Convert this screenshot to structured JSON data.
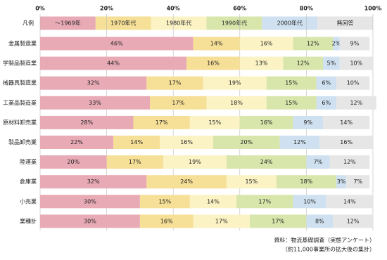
{
  "chart_data": {
    "type": "stacked-bar-horizontal",
    "legend_title": "凡例",
    "categories": [
      "金属製造業",
      "学製品製造業",
      "械器具製造業",
      "工業品製造業",
      "原材料卸売業",
      "製品卸売業",
      "陸運業",
      "倉庫業",
      "小売業",
      "業種計"
    ],
    "series": [
      {
        "name": "〜1969年",
        "color": "#e8aab5",
        "values": [
          46,
          44,
          32,
          33,
          28,
          22,
          20,
          32,
          30,
          30
        ],
        "value_labels": [
          "46%",
          "44%",
          "32%",
          "33%",
          "28%",
          "22%",
          "20%",
          "32%",
          "30%",
          "30%"
        ]
      },
      {
        "name": "1970年代",
        "color": "#f6df96",
        "values": [
          14,
          16,
          17,
          17,
          17,
          14,
          17,
          24,
          15,
          16
        ],
        "value_labels": [
          "14%",
          "16%",
          "17%",
          "17%",
          "17%",
          "14%",
          "17%",
          "24%",
          "15%",
          "16%"
        ]
      },
      {
        "name": "1980年代",
        "color": "#fbf3c4",
        "values": [
          16,
          13,
          19,
          18,
          15,
          16,
          19,
          15,
          14,
          17
        ],
        "value_labels": [
          "16%",
          "13%",
          "19%",
          "18%",
          "15%",
          "16%",
          "19%",
          "15%",
          "14%",
          "17%"
        ]
      },
      {
        "name": "1990年代",
        "color": "#d9e6ab",
        "values": [
          12,
          12,
          15,
          15,
          16,
          20,
          24,
          18,
          17,
          17
        ],
        "value_labels": [
          "12%",
          "12%",
          "15%",
          "15%",
          "16%",
          "20%",
          "24%",
          "18%",
          "17%",
          "17%"
        ]
      },
      {
        "name": "2000年代",
        "color": "#cfe1f0",
        "values": [
          2,
          5,
          6,
          6,
          9,
          12,
          7,
          3,
          10,
          8
        ],
        "value_labels": [
          "2%",
          "5%",
          "6%",
          "6%",
          "9%",
          "12%",
          "7%",
          "3%",
          "10%",
          "8%"
        ]
      },
      {
        "name": "無回答",
        "color": "#e6e6e6",
        "values": [
          9,
          10,
          10,
          12,
          14,
          16,
          12,
          7,
          14,
          12
        ],
        "value_labels": [
          "9%",
          "10%",
          "10%",
          "12%",
          "14%",
          "16%",
          "12%",
          "7%",
          "14%",
          "12%"
        ]
      }
    ],
    "xlim": [
      0,
      100
    ],
    "xticks": [
      {
        "value": 0,
        "label": "0%"
      },
      {
        "value": 20,
        "label": "20%"
      },
      {
        "value": 40,
        "label": "40%"
      },
      {
        "value": 60,
        "label": "60%"
      },
      {
        "value": 80,
        "label": "80%"
      },
      {
        "value": 100,
        "label": "100%"
      }
    ],
    "grid": true,
    "source": [
      "資料：物流基礎調査（実態アンケート）",
      "（約11,000事業所の拡大後の集計）"
    ]
  }
}
